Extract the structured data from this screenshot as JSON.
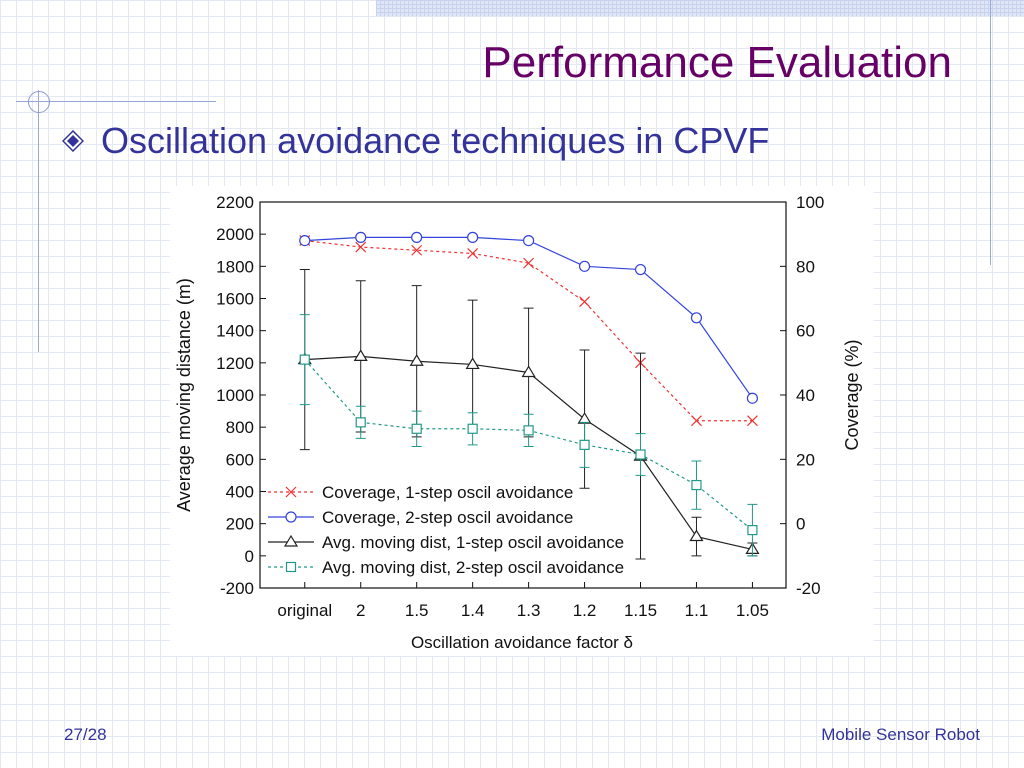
{
  "slide": {
    "title": "Performance Evaluation",
    "bullet_text": "Oscillation avoidance techniques in CPVF",
    "page_number": "27/28",
    "footer_text": "Mobile Sensor Robot",
    "colors": {
      "title": "#660066",
      "text": "#333399",
      "bullet_icon": "#333399"
    },
    "bullet_icon": "diamond-bullet-icon"
  },
  "chart_data": {
    "type": "line",
    "xlabel": "Oscillation avoidance factor δ",
    "ylabel": "Average moving distance (m)",
    "y2label": "Coverage (%)",
    "categories": [
      "original",
      "2",
      "1.5",
      "1.4",
      "1.3",
      "1.2",
      "1.15",
      "1.1",
      "1.05"
    ],
    "ylim": [
      -200,
      2200
    ],
    "yticks": [
      -200,
      0,
      200,
      400,
      600,
      800,
      1000,
      1200,
      1400,
      1600,
      1800,
      2000,
      2200
    ],
    "y2lim": [
      -20,
      100
    ],
    "y2ticks": [
      -20,
      0,
      20,
      40,
      60,
      80,
      100
    ],
    "grid": false,
    "legend_position": "bottom-left",
    "series": [
      {
        "name": "Coverage, 1-step oscil avoidance",
        "axis": "right",
        "color": "#ee3333",
        "marker": "x",
        "dash": "dashed",
        "values": [
          88,
          86,
          85,
          84,
          81,
          69,
          50,
          32,
          32
        ]
      },
      {
        "name": "Coverage, 2-step oscil avoidance",
        "axis": "right",
        "color": "#3344dd",
        "marker": "circle",
        "dash": "solid",
        "values": [
          88,
          89,
          89,
          89,
          88,
          80,
          79,
          64,
          39
        ]
      },
      {
        "name": "Avg. moving dist, 1-step oscil avoidance",
        "axis": "left",
        "color": "#222222",
        "marker": "triangle",
        "dash": "solid",
        "values": [
          1220,
          1240,
          1210,
          1190,
          1140,
          850,
          620,
          120,
          40
        ],
        "error": [
          560,
          470,
          470,
          400,
          400,
          430,
          640,
          120,
          40
        ]
      },
      {
        "name": "Avg. moving dist, 2-step oscil avoidance",
        "axis": "left",
        "color": "#229988",
        "marker": "square",
        "dash": "dashed",
        "values": [
          1220,
          830,
          790,
          790,
          780,
          690,
          630,
          440,
          160
        ],
        "error": [
          280,
          100,
          110,
          100,
          100,
          140,
          130,
          150,
          160
        ]
      }
    ]
  }
}
